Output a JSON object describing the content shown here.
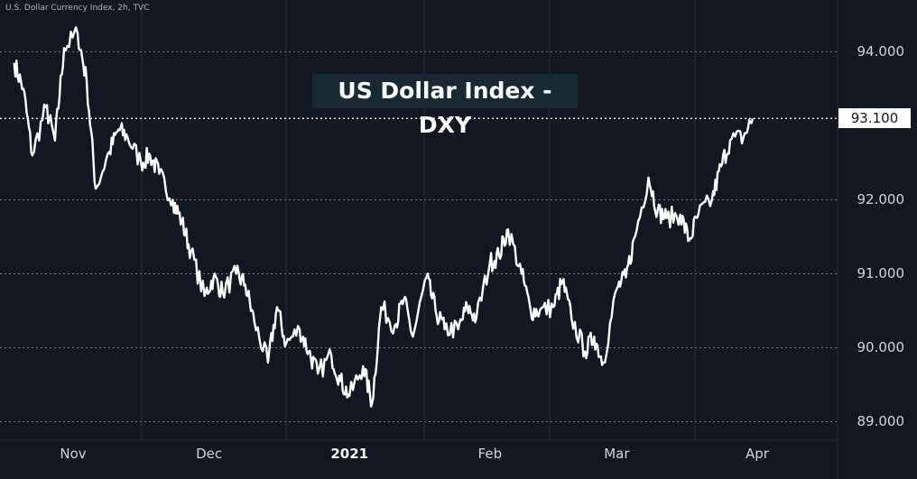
{
  "header": {
    "label": "U.S. Dollar Currency Index, 2h, TVC"
  },
  "chart_data": {
    "type": "line",
    "title": "US Dollar Index - DXY",
    "instrument": "U.S. Dollar Currency Index, 2h, TVC",
    "ylim": [
      88.75,
      94.7
    ],
    "y_ticks": [
      "94.000",
      "93.100",
      "92.000",
      "91.000",
      "90.000",
      "89.000"
    ],
    "x_ticks": [
      {
        "label": "Nov",
        "bold": false
      },
      {
        "label": "Dec",
        "bold": false
      },
      {
        "label": "2021",
        "bold": true
      },
      {
        "label": "Feb",
        "bold": false
      },
      {
        "label": "Mar",
        "bold": false
      },
      {
        "label": "Apr",
        "bold": false
      }
    ],
    "last_price": "93.100",
    "grid": true,
    "colors": {
      "background": "#131722",
      "line": "#ffffff",
      "grid": "#787b86",
      "title_box": "#172a33"
    },
    "series": [
      {
        "x": [
          "2020-10-19",
          "2020-10-21",
          "2020-10-23",
          "2020-10-26",
          "2020-10-28",
          "2020-10-30",
          "2020-11-02",
          "2020-11-04",
          "2020-11-06",
          "2020-11-09",
          "2020-11-11",
          "2020-11-13",
          "2020-11-16",
          "2020-11-18",
          "2020-11-20",
          "2020-11-23",
          "2020-11-25",
          "2020-11-27",
          "2020-11-30",
          "2020-12-02",
          "2020-12-04",
          "2020-12-07",
          "2020-12-09",
          "2020-12-11",
          "2020-12-14",
          "2020-12-16",
          "2020-12-18",
          "2020-12-21",
          "2020-12-23",
          "2020-12-25",
          "2020-12-28",
          "2020-12-30",
          "2021-01-01",
          "2021-01-04",
          "2021-01-06",
          "2021-01-08",
          "2021-01-11",
          "2021-01-13",
          "2021-01-15",
          "2021-01-18",
          "2021-01-20",
          "2021-01-22",
          "2021-01-25",
          "2021-01-27",
          "2021-01-29",
          "2021-02-01",
          "2021-02-03",
          "2021-02-05",
          "2021-02-08",
          "2021-02-10",
          "2021-02-12",
          "2021-02-15",
          "2021-02-17",
          "2021-02-19",
          "2021-02-22",
          "2021-02-24",
          "2021-02-26",
          "2021-03-01",
          "2021-03-03",
          "2021-03-05",
          "2021-03-08",
          "2021-03-10",
          "2021-03-12",
          "2021-03-15",
          "2021-03-17",
          "2021-03-19",
          "2021-03-22",
          "2021-03-24",
          "2021-03-26",
          "2021-03-29",
          "2021-03-31"
        ],
        "values": [
          93.85,
          93.5,
          92.6,
          93.25,
          92.8,
          94.05,
          94.25,
          93.6,
          92.15,
          92.65,
          92.95,
          92.85,
          92.5,
          92.6,
          92.35,
          92.0,
          91.7,
          91.3,
          90.7,
          90.95,
          90.75,
          91.0,
          90.85,
          90.35,
          89.8,
          90.55,
          90.05,
          90.25,
          89.95,
          89.65,
          89.9,
          89.55,
          89.35,
          89.75,
          89.25,
          90.55,
          90.3,
          90.65,
          90.15,
          90.95,
          90.5,
          90.25,
          90.25,
          90.55,
          90.4,
          91.15,
          91.25,
          91.6,
          91.0,
          90.5,
          90.5,
          90.55,
          90.9,
          90.4,
          89.95,
          90.15,
          89.8,
          90.8,
          90.95,
          91.5,
          92.3,
          91.85,
          91.75,
          91.8,
          91.45,
          91.8,
          92.0,
          92.45,
          92.8,
          92.85,
          93.1
        ]
      }
    ]
  }
}
